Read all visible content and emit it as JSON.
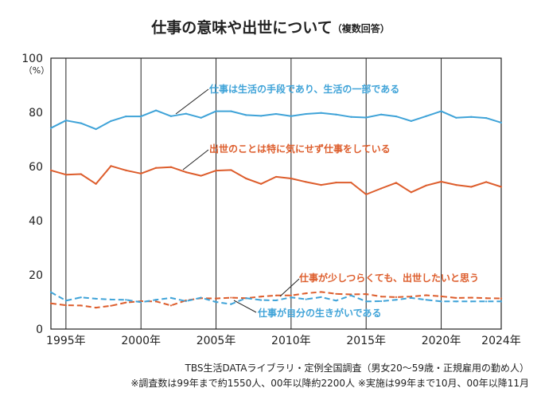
{
  "chart_data": {
    "type": "line",
    "title": "仕事の意味や出世について",
    "subtitle": "（複数回答）",
    "y_unit": "（%）",
    "ylim": [
      0,
      100
    ],
    "y_ticks": [
      0,
      20,
      40,
      60,
      80,
      100
    ],
    "xlim": [
      1994,
      2024
    ],
    "x_ticks": [
      1995,
      2000,
      2005,
      2010,
      2015,
      2020,
      2024
    ],
    "x_tick_labels": [
      "1995年",
      "2000年",
      "2005年",
      "2010年",
      "2015年",
      "2020年",
      "2024年"
    ],
    "grid": "vertical",
    "legend": "inline annotations",
    "x": [
      1994,
      1995,
      1996,
      1997,
      1998,
      1999,
      2000,
      2001,
      2002,
      2003,
      2004,
      2005,
      2006,
      2007,
      2008,
      2009,
      2010,
      2011,
      2012,
      2013,
      2014,
      2015,
      2016,
      2017,
      2018,
      2019,
      2020,
      2021,
      2022,
      2023,
      2024
    ],
    "series": [
      {
        "name": "仕事は生活の手段であり、生活の一部である",
        "color": "#3fa3d8",
        "style": "solid",
        "values": [
          74.2,
          77.0,
          76.0,
          73.8,
          76.8,
          78.5,
          78.5,
          80.7,
          78.6,
          79.5,
          78.0,
          80.4,
          80.4,
          79.0,
          78.7,
          79.4,
          78.6,
          79.4,
          79.8,
          79.2,
          78.3,
          78.1,
          79.2,
          78.5,
          76.8,
          78.6,
          80.4,
          78.0,
          78.3,
          77.9,
          76.2
        ]
      },
      {
        "name": "出世のことは特に気にせず仕事をしている",
        "color": "#dd5d2c",
        "style": "solid",
        "values": [
          58.6,
          57.0,
          57.2,
          53.6,
          60.2,
          58.6,
          57.4,
          59.5,
          59.8,
          57.9,
          56.6,
          58.5,
          58.7,
          55.6,
          53.6,
          56.2,
          55.6,
          54.3,
          53.2,
          54.1,
          54.1,
          49.7,
          51.9,
          54.0,
          50.5,
          53.0,
          54.4,
          53.2,
          52.5,
          54.3,
          52.5
        ]
      },
      {
        "name": "仕事が少しつらくても、出世したいと思う",
        "color": "#dd5d2c",
        "style": "dashed",
        "values": [
          9.5,
          8.8,
          8.7,
          7.9,
          8.6,
          9.8,
          10.3,
          10.2,
          8.7,
          10.6,
          11.4,
          11.3,
          11.6,
          11.4,
          12.0,
          12.4,
          12.4,
          13.2,
          13.7,
          13.0,
          12.8,
          12.9,
          12.0,
          11.8,
          12.0,
          12.5,
          12.1,
          11.5,
          11.6,
          11.4,
          11.3
        ]
      },
      {
        "name": "仕事が自分の生きがいである",
        "color": "#3fa3d8",
        "style": "dashed",
        "values": [
          13.6,
          10.5,
          11.7,
          11.2,
          10.9,
          10.8,
          9.9,
          10.8,
          11.5,
          10.3,
          11.6,
          10.0,
          9.2,
          11.4,
          10.7,
          10.6,
          11.7,
          11.0,
          11.8,
          10.5,
          12.4,
          10.2,
          10.3,
          10.8,
          11.5,
          10.8,
          10.2,
          10.2,
          10.2,
          10.2,
          10.2
        ]
      }
    ]
  },
  "footnotes": {
    "source": "TBS生活DATAライブラリ・定例全国調査（男女20～59歳・正規雇用の勤め人）",
    "note": "※調査数は99年まで約1550人、00年以降約2200人 ※実施は99年まで10月、00年以降11月"
  }
}
